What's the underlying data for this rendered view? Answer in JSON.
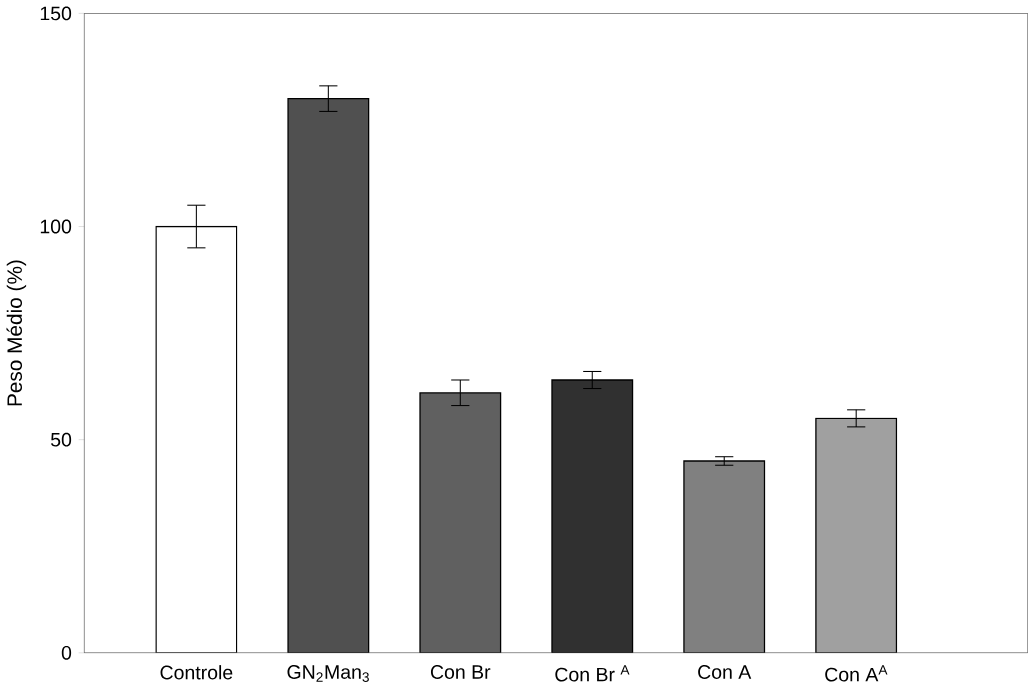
{
  "chart_data": {
    "type": "bar",
    "ylabel": "Peso Médio (%)",
    "categories": [
      "Controle",
      "GN$_{2}$Man$_{3}$",
      "Con Br",
      "Con Br $^{A}$",
      "Con A",
      "Con A$^{A}$"
    ],
    "values": [
      100,
      130,
      61,
      64,
      45,
      55
    ],
    "errors": [
      5,
      3,
      3,
      2,
      1,
      2
    ],
    "colors": [
      "#ffffff",
      "#505050",
      "#606060",
      "#303030",
      "#808080",
      "#a0a0a0"
    ],
    "ylim": [
      0,
      150
    ],
    "yticks": [
      0,
      50,
      100,
      150
    ]
  }
}
